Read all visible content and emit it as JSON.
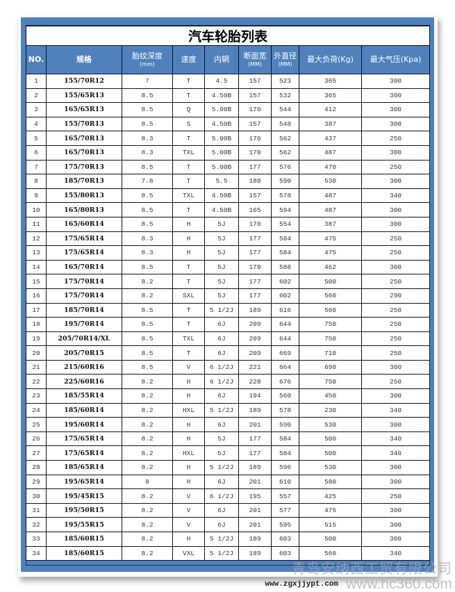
{
  "title": "汽车轮胎列表",
  "headers": [
    {
      "label": "NO.",
      "sub": ""
    },
    {
      "label": "规格",
      "sub": ""
    },
    {
      "label": "胎纹深度",
      "sub": "(mm)"
    },
    {
      "label": "速度",
      "sub": ""
    },
    {
      "label": "内辋",
      "sub": ""
    },
    {
      "label": "断面宽",
      "sub": "(MM)"
    },
    {
      "label": "外直径",
      "sub": "(MM)"
    },
    {
      "label": "最大负荷(Kg)",
      "sub": ""
    },
    {
      "label": "最大气压(Kpa)",
      "sub": ""
    }
  ],
  "rows": [
    [
      "1",
      "155/70R12",
      "7",
      "T",
      "4.5",
      "157",
      "523",
      "365",
      "300"
    ],
    [
      "2",
      "155/65R13",
      "8.5",
      "T",
      "4.50B",
      "157",
      "532",
      "365",
      "300"
    ],
    [
      "3",
      "165/65R13",
      "8.5",
      "Q",
      "5.00B",
      "170",
      "544",
      "412",
      "300"
    ],
    [
      "4",
      "155/70R13",
      "8.5",
      "S",
      "4.50B",
      "157",
      "548",
      "387",
      "300"
    ],
    [
      "5",
      "165/70R13",
      "8.3",
      "T",
      "5.00B",
      "170",
      "562",
      "437",
      "250"
    ],
    [
      "6",
      "165/70R13",
      "8.3",
      "TXL",
      "5.00B",
      "170",
      "562",
      "487",
      "300"
    ],
    [
      "7",
      "175/70R13",
      "8.5",
      "T",
      "5.00B",
      "177",
      "576",
      "470",
      "250"
    ],
    [
      "8",
      "185/70R13",
      "7.8",
      "T",
      "5.5",
      "180",
      "590",
      "530",
      "300"
    ],
    [
      "9",
      "155/80R13",
      "8.5",
      "TXL",
      "4.50B",
      "157",
      "578",
      "487",
      "340"
    ],
    [
      "10",
      "165/80R13",
      "8.5",
      "T",
      "4.50B",
      "165",
      "594",
      "487",
      "300"
    ],
    [
      "11",
      "165/60R14",
      "8.5",
      "H",
      "5J",
      "170",
      "554",
      "387",
      "300"
    ],
    [
      "12",
      "175/65R14",
      "8.3",
      "H",
      "5J",
      "177",
      "584",
      "475",
      "250"
    ],
    [
      "13",
      "175/65R14",
      "8.3",
      "H",
      "5J",
      "177",
      "584",
      "475",
      "250"
    ],
    [
      "14",
      "165/70R14",
      "8.5",
      "T",
      "5J",
      "170",
      "588",
      "462",
      "300"
    ],
    [
      "15",
      "175/70R14",
      "8.2",
      "T",
      "5J",
      "177",
      "602",
      "500",
      "250"
    ],
    [
      "16",
      "175/70R14",
      "8.2",
      "SXL",
      "5J",
      "177",
      "602",
      "560",
      "290"
    ],
    [
      "17",
      "185/70R14",
      "8.5",
      "T",
      "5 1/2J",
      "189",
      "616",
      "560",
      "250"
    ],
    [
      "18",
      "195/70R14",
      "8.5",
      "T",
      "6J",
      "209",
      "644",
      "750",
      "250"
    ],
    [
      "19",
      "205/70R14/XL",
      "8.5",
      "TXL",
      "6J",
      "209",
      "644",
      "750",
      "250"
    ],
    [
      "20",
      "205/70R15",
      "8.5",
      "T",
      "6J",
      "209",
      "669",
      "710",
      "250"
    ],
    [
      "21",
      "215/60R16",
      "8.5",
      "V",
      "6 1/2J",
      "221",
      "664",
      "690",
      "300"
    ],
    [
      "22",
      "225/60R16",
      "8.2",
      "H",
      "6 1/2J",
      "228",
      "676",
      "750",
      "250"
    ],
    [
      "23",
      "185/55R14",
      "8.2",
      "H",
      "6J",
      "194",
      "560",
      "450",
      "300"
    ],
    [
      "24",
      "185/60R14",
      "8.2",
      "HXL",
      "5 1/2J",
      "189",
      "578",
      "230",
      "340"
    ],
    [
      "25",
      "195/60R14",
      "8.2",
      "H",
      "6J",
      "201",
      "590",
      "530",
      "300"
    ],
    [
      "26",
      "175/65R14",
      "8.2",
      "H",
      "5J",
      "177",
      "584",
      "500",
      "340"
    ],
    [
      "27",
      "175/65R14",
      "8.2",
      "HXL",
      "5J",
      "177",
      "584",
      "500",
      "340"
    ],
    [
      "28",
      "185/65R14",
      "8.2",
      "H",
      "5 1/2J",
      "189",
      "596",
      "530",
      "300"
    ],
    [
      "29",
      "195/65R14",
      "8",
      "H",
      "6J",
      "201",
      "610",
      "580",
      "300"
    ],
    [
      "30",
      "195/45R15",
      "8.2",
      "V",
      "6 1/2J",
      "195",
      "557",
      "425",
      "250"
    ],
    [
      "31",
      "195/50R15",
      "8.2",
      "V",
      "6J",
      "201",
      "577",
      "475",
      "300"
    ],
    [
      "32",
      "195/55R15",
      "8.2",
      "V",
      "6J",
      "201",
      "595",
      "515",
      "300"
    ],
    [
      "33",
      "185/60R15",
      "8.2",
      "H",
      "5 1/2J",
      "189",
      "603",
      "500",
      "300"
    ],
    [
      "34",
      "185/60R15",
      "8.2",
      "VXL",
      "5 1/2J",
      "189",
      "603",
      "560",
      "340"
    ]
  ],
  "watermarks": {
    "company": "青岛安纳西工贸有限公司",
    "url1": "www.zgxjjypt.com",
    "url2": "www.hc360.com"
  },
  "colors": {
    "frame": "#4f81bd",
    "header_bg": "#4f81bd",
    "header_text": "#ffffff"
  }
}
